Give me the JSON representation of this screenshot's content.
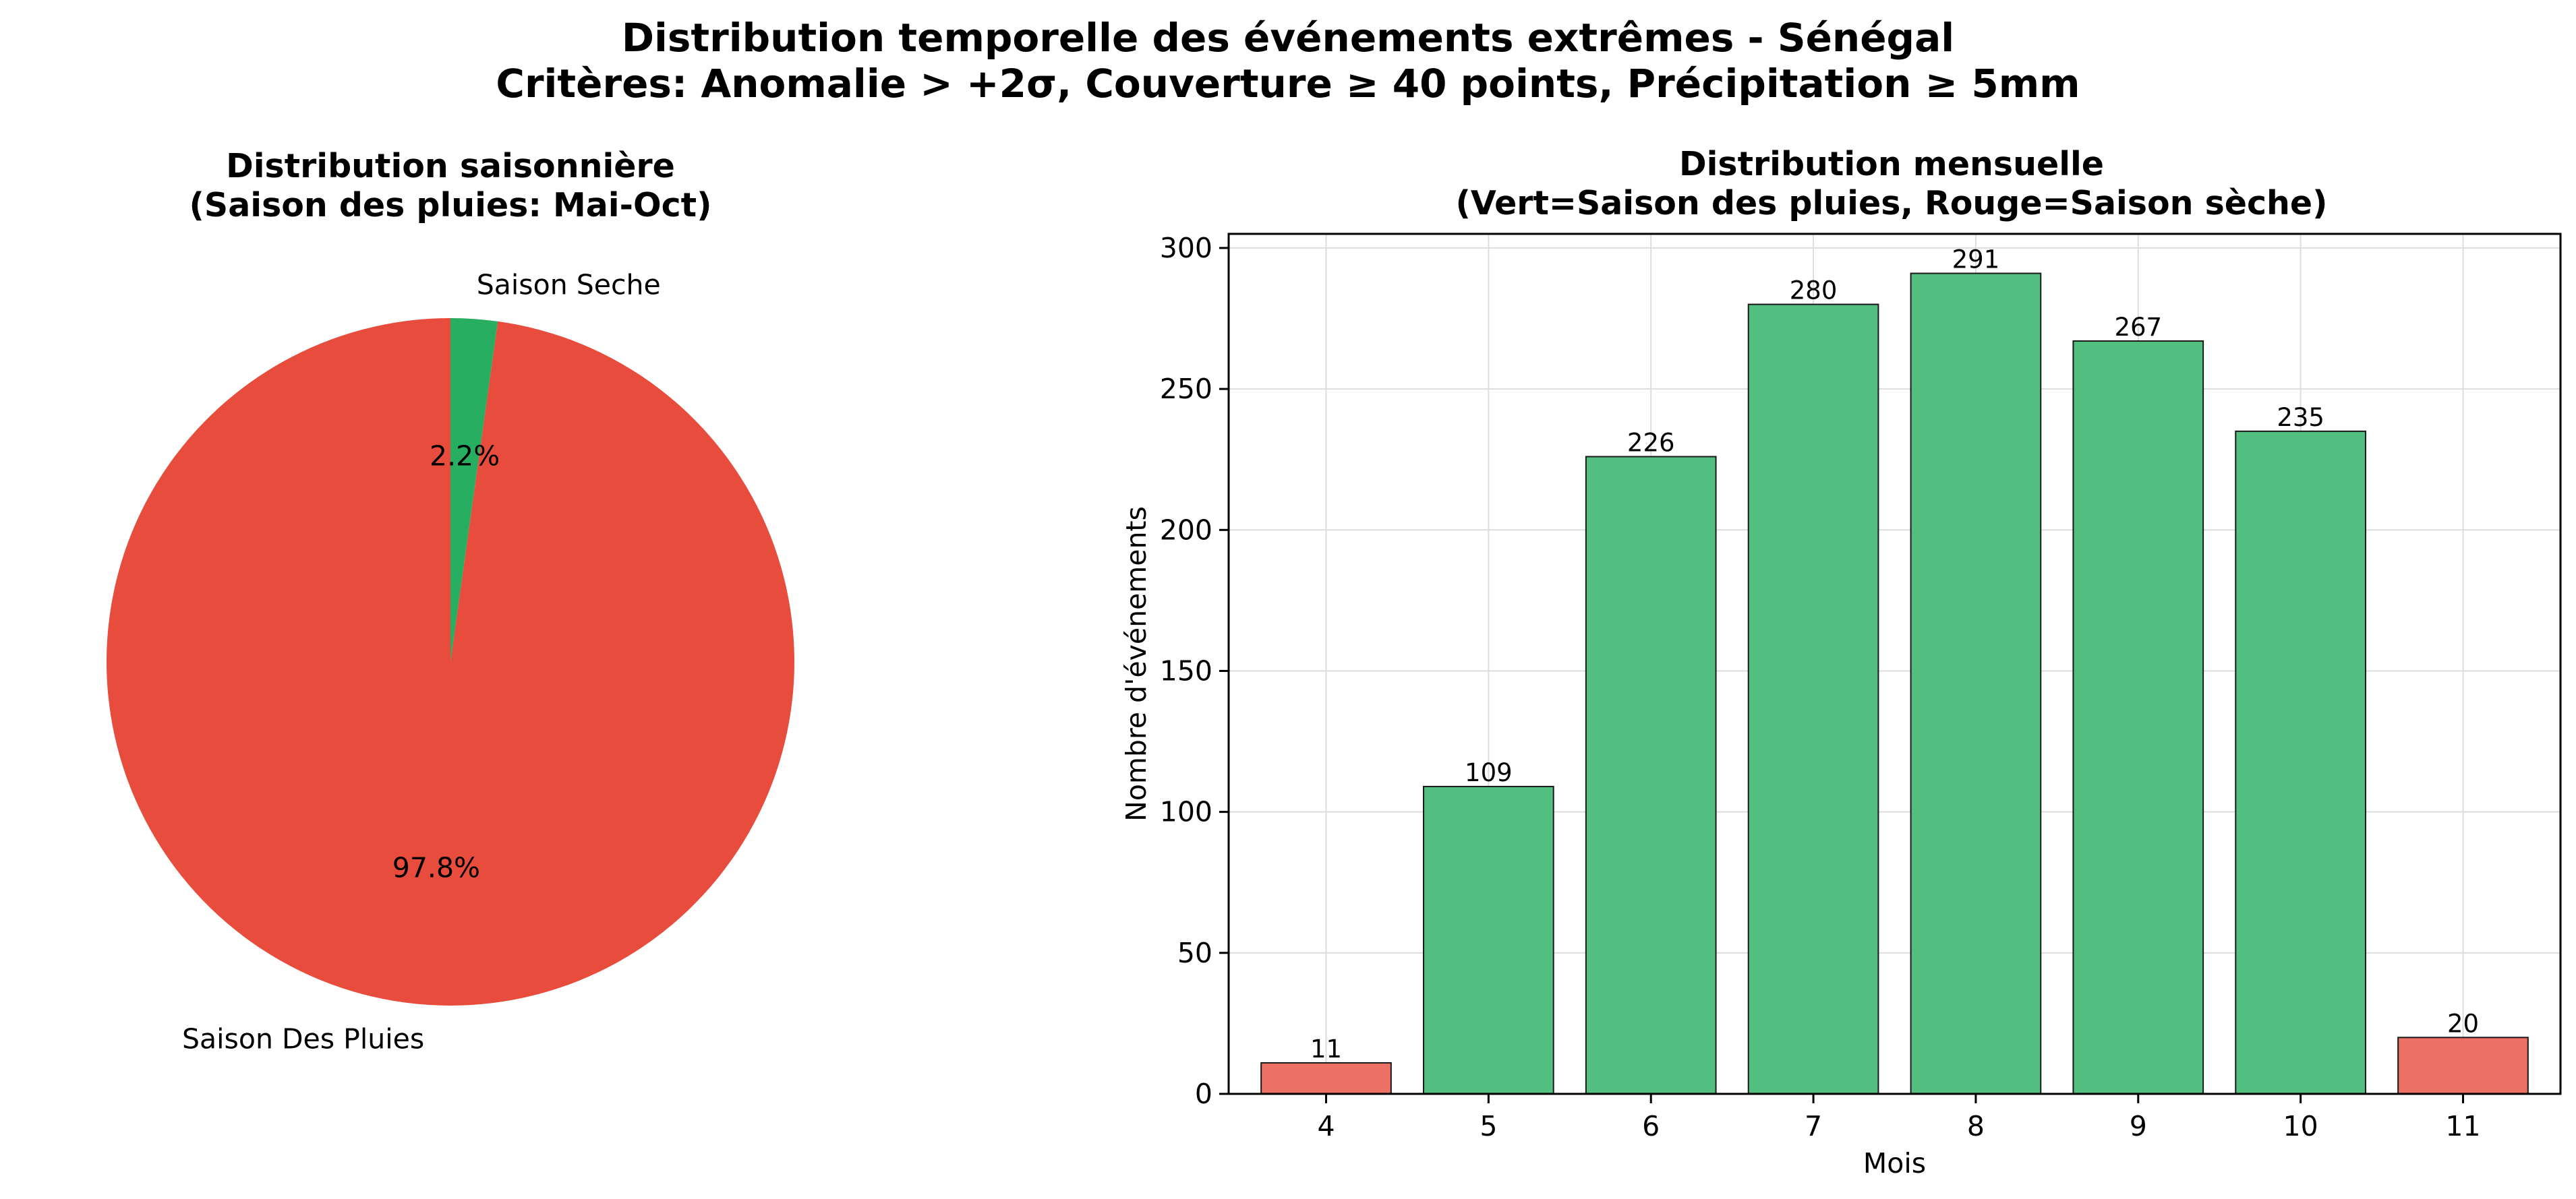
{
  "suptitle": {
    "line1": "Distribution temporelle des événements extrêmes - Sénégal",
    "line2": "Critères: Anomalie > +2σ, Couverture ≥ 40 points, Précipitation ≥ 5mm"
  },
  "colors": {
    "rainy": "#e74c3c",
    "dry": "#27ae60",
    "bar_green": "#52be80",
    "bar_red": "#ec7063",
    "bar_edge": "#1a1a1a",
    "grid": "#dddddd"
  },
  "chart_data": [
    {
      "type": "pie",
      "title_line1": "Distribution saisonnière",
      "title_line2": "(Saison des pluies: Mai-Oct)",
      "labels": [
        "Saison Des Pluies",
        "Saison Seche"
      ],
      "values": [
        97.8,
        2.2
      ],
      "pct_labels": [
        "97.8%",
        "2.2%"
      ],
      "colors": [
        "#e74c3c",
        "#27ae60"
      ]
    },
    {
      "type": "bar",
      "title_line1": "Distribution mensuelle",
      "title_line2": "(Vert=Saison des pluies, Rouge=Saison sèche)",
      "xlabel": "Mois",
      "ylabel": "Nombre d'événements",
      "categories": [
        "4",
        "5",
        "6",
        "7",
        "8",
        "9",
        "10",
        "11"
      ],
      "values": [
        11,
        109,
        226,
        280,
        291,
        267,
        235,
        20
      ],
      "season": [
        "dry",
        "rainy",
        "rainy",
        "rainy",
        "rainy",
        "rainy",
        "rainy",
        "dry"
      ],
      "ylim": [
        0,
        305
      ],
      "yticks": [
        0,
        50,
        100,
        150,
        200,
        250,
        300
      ],
      "grid": true
    }
  ]
}
